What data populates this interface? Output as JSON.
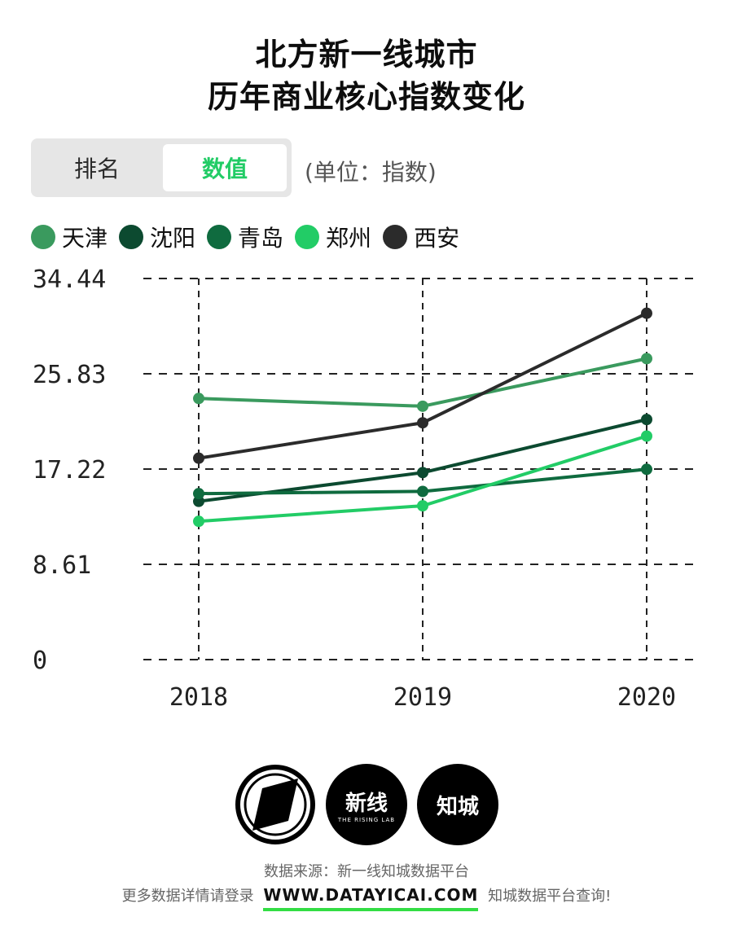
{
  "header": {
    "title_line1": "北方新一线城市",
    "title_line2": "历年商业核心指数变化"
  },
  "toggle": {
    "options": [
      "排名",
      "数值"
    ],
    "selected": "数值"
  },
  "unit_note": "(单位：指数)",
  "colors": {
    "accent": "#22cc66",
    "url_underline": "#33dd44"
  },
  "chart_data": {
    "type": "line",
    "x": [
      "2018",
      "2019",
      "2020"
    ],
    "ylim": [
      0,
      34.44
    ],
    "yticks": [
      "34.44",
      "25.83",
      "17.22",
      "8.61",
      "0"
    ],
    "grid": true,
    "legend_position": "top-left",
    "series": [
      {
        "name": "天津",
        "color": "#3a9a5e",
        "values": [
          23.6,
          22.9,
          27.2
        ]
      },
      {
        "name": "沈阳",
        "color": "#0c4a30",
        "values": [
          14.3,
          16.9,
          21.7
        ]
      },
      {
        "name": "青岛",
        "color": "#0f6b3f",
        "values": [
          15.0,
          15.2,
          17.2
        ]
      },
      {
        "name": "郑州",
        "color": "#22cc66",
        "values": [
          12.5,
          13.9,
          20.2
        ]
      },
      {
        "name": "西安",
        "color": "#2b2b2b",
        "values": [
          18.2,
          21.4,
          31.3
        ]
      }
    ]
  },
  "logos": {
    "logo2_main": "新线",
    "logo2_sub": "THE RISING LAB",
    "logo3_main": "知城"
  },
  "footer": {
    "source": "数据来源：新一线知城数据平台",
    "more_prefix": "更多数据详情请登录",
    "url": "WWW.DATAYICAI.COM",
    "more_suffix": "知城数据平台查询!"
  }
}
